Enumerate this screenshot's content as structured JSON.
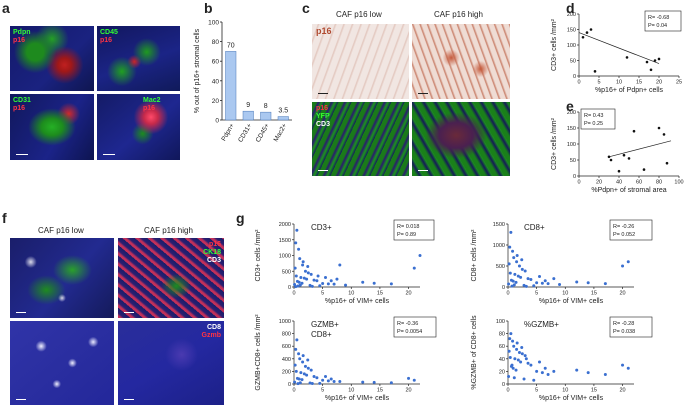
{
  "figure": {
    "panels": {
      "a": {
        "letter": "a",
        "tiles": [
          {
            "markers": [
              "Pdpn",
              "p16"
            ],
            "colors": [
              "#33ff33",
              "#ff3344"
            ]
          },
          {
            "markers": [
              "CD45",
              "p16"
            ],
            "colors": [
              "#33ff33",
              "#ff3344"
            ]
          },
          {
            "markers": [
              "CD31",
              "p16"
            ],
            "colors": [
              "#33ff33",
              "#ff3344"
            ]
          },
          {
            "markers": [
              "Mac2",
              "p16"
            ],
            "colors": [
              "#33ff33",
              "#ff3344"
            ]
          }
        ]
      },
      "b": {
        "letter": "b"
      },
      "c": {
        "letter": "c",
        "col_headers": [
          "CAF p16 low",
          "CAF p16 high"
        ],
        "ihc_label": "p16",
        "if_labels": [
          {
            "text": "p16",
            "color": "#ff3344"
          },
          {
            "text": "YFP",
            "color": "#33ff33"
          },
          {
            "text": "CD3",
            "color": "#ffffff"
          }
        ]
      },
      "d": {
        "letter": "d"
      },
      "e": {
        "letter": "e"
      },
      "f": {
        "letter": "f",
        "col_headers": [
          "CAF p16 low",
          "CAF p16 high"
        ],
        "top_labels": [
          {
            "text": "p16",
            "color": "#ff3344"
          },
          {
            "text": "CK18",
            "color": "#33ff33"
          },
          {
            "text": "CD3",
            "color": "#ffffff"
          }
        ],
        "bottom_labels": [
          {
            "text": "CD8",
            "color": "#ffffff"
          },
          {
            "text": "Gzmb",
            "color": "#ff3344"
          }
        ]
      },
      "g": {
        "letter": "g"
      }
    }
  },
  "chart_data": [
    {
      "id": "b",
      "type": "bar",
      "categories": [
        "Pdpn+",
        "CD31+",
        "CD45+",
        "Mac2+"
      ],
      "values": [
        70,
        9,
        8,
        3.5
      ],
      "value_labels": [
        "70",
        "9",
        "8",
        "3.5"
      ],
      "ylabel": "% out of p16+ stromal cells",
      "ylim": [
        0,
        100
      ],
      "yticks": [
        "0",
        "20",
        "40",
        "60",
        "80",
        "100"
      ],
      "bar_color": "#aac8f0"
    },
    {
      "id": "d",
      "type": "scatter",
      "xlabel": "%p16+ of Pdpn+ cells",
      "ylabel": "CD3+ cells /mm²",
      "xlim": [
        0,
        25
      ],
      "ylim": [
        0,
        200
      ],
      "xticks": [
        "0",
        "5",
        "10",
        "15",
        "20",
        "25"
      ],
      "yticks": [
        "0",
        "50",
        "100",
        "150",
        "200"
      ],
      "stats": [
        "R= -0.68",
        "P= 0.04"
      ],
      "points": [
        [
          1,
          125
        ],
        [
          2,
          140
        ],
        [
          3,
          150
        ],
        [
          4,
          15
        ],
        [
          12,
          60
        ],
        [
          17,
          45
        ],
        [
          18,
          20
        ],
        [
          19,
          50
        ],
        [
          20,
          55
        ]
      ],
      "trendline": [
        [
          0,
          140
        ],
        [
          20,
          40
        ]
      ]
    },
    {
      "id": "e",
      "type": "scatter",
      "xlabel": "%Pdpn+ of stromal area",
      "ylabel": "CD3+ cells /mm²",
      "xlim": [
        0,
        100
      ],
      "ylim": [
        0,
        200
      ],
      "xticks": [
        "0",
        "20",
        "40",
        "60",
        "80",
        "100"
      ],
      "yticks": [
        "0",
        "50",
        "100",
        "150",
        "200"
      ],
      "stats": [
        "R= 0.43",
        "P= 0.25"
      ],
      "points": [
        [
          30,
          60
        ],
        [
          32,
          50
        ],
        [
          40,
          15
        ],
        [
          45,
          65
        ],
        [
          50,
          55
        ],
        [
          55,
          140
        ],
        [
          65,
          20
        ],
        [
          80,
          150
        ],
        [
          85,
          130
        ],
        [
          88,
          40
        ]
      ],
      "trendline": [
        [
          30,
          60
        ],
        [
          92,
          110
        ]
      ]
    },
    {
      "id": "g1",
      "type": "scatter",
      "title": "CD3+",
      "xlabel": "%p16+ of VIM+ cells",
      "ylabel": "CD3+ cells /mm²",
      "xlim": [
        0,
        22
      ],
      "ylim": [
        0,
        2000
      ],
      "xticks": [
        "0",
        "5",
        "10",
        "15",
        "20"
      ],
      "yticks": [
        "0",
        "500",
        "1000",
        "1500",
        "2000"
      ],
      "stats": [
        "R= 0.018",
        "P= 0.89"
      ],
      "points": [
        [
          0.5,
          1800
        ],
        [
          0.3,
          1400
        ],
        [
          0.8,
          1200
        ],
        [
          1,
          900
        ],
        [
          1.5,
          700
        ],
        [
          0.2,
          600
        ],
        [
          2,
          500
        ],
        [
          2.5,
          450
        ],
        [
          3,
          400
        ],
        [
          0.4,
          350
        ],
        [
          1.2,
          300
        ],
        [
          1.8,
          280
        ],
        [
          2.2,
          250
        ],
        [
          3.5,
          220
        ],
        [
          4,
          200
        ],
        [
          0.6,
          180
        ],
        [
          0.9,
          150
        ],
        [
          1.4,
          120
        ],
        [
          5,
          110
        ],
        [
          6,
          100
        ],
        [
          7,
          90
        ],
        [
          0.1,
          80
        ],
        [
          1.1,
          60
        ],
        [
          2.8,
          50
        ],
        [
          4.5,
          40
        ],
        [
          0.7,
          30
        ],
        [
          3.2,
          20
        ],
        [
          5.5,
          300
        ],
        [
          6.5,
          200
        ],
        [
          8,
          700
        ],
        [
          12,
          150
        ],
        [
          14,
          120
        ],
        [
          17,
          100
        ],
        [
          21,
          600
        ],
        [
          22,
          1000
        ],
        [
          1.6,
          800
        ],
        [
          2.4,
          650
        ],
        [
          0.3,
          10
        ],
        [
          4.2,
          350
        ],
        [
          7.5,
          250
        ],
        [
          9,
          60
        ]
      ]
    },
    {
      "id": "g2",
      "type": "scatter",
      "title": "CD8+",
      "xlabel": "%p16+ of VIM+ cells",
      "ylabel": "CD8+ cells /mm²",
      "xlim": [
        0,
        22
      ],
      "ylim": [
        0,
        1500
      ],
      "xticks": [
        "0",
        "5",
        "10",
        "15",
        "20"
      ],
      "yticks": [
        "0",
        "500",
        "1000",
        "1500"
      ],
      "stats": [
        "R= -0.26",
        "P= 0.052"
      ],
      "points": [
        [
          0.5,
          1300
        ],
        [
          0.3,
          950
        ],
        [
          0.8,
          850
        ],
        [
          1,
          700
        ],
        [
          1.5,
          600
        ],
        [
          0.2,
          550
        ],
        [
          2,
          500
        ],
        [
          2.5,
          420
        ],
        [
          3,
          380
        ],
        [
          0.4,
          330
        ],
        [
          1.2,
          300
        ],
        [
          1.8,
          260
        ],
        [
          2.2,
          230
        ],
        [
          3.5,
          200
        ],
        [
          4,
          180
        ],
        [
          0.6,
          160
        ],
        [
          0.9,
          140
        ],
        [
          1.4,
          110
        ],
        [
          5,
          100
        ],
        [
          6,
          90
        ],
        [
          7,
          80
        ],
        [
          0.1,
          70
        ],
        [
          1.1,
          50
        ],
        [
          2.8,
          40
        ],
        [
          4.5,
          30
        ],
        [
          0.7,
          20
        ],
        [
          3.2,
          15
        ],
        [
          5.5,
          250
        ],
        [
          6.5,
          150
        ],
        [
          8,
          200
        ],
        [
          12,
          120
        ],
        [
          14,
          100
        ],
        [
          17,
          80
        ],
        [
          20,
          500
        ],
        [
          21,
          600
        ],
        [
          1.6,
          750
        ],
        [
          2.4,
          650
        ],
        [
          9,
          60
        ]
      ]
    },
    {
      "id": "g3",
      "type": "scatter",
      "title": "GZMB+\nCD8+",
      "xlabel": "%p16+ of VIM+ cells",
      "ylabel": "GZMB+CD8+ cells /mm²",
      "xlim": [
        0,
        22
      ],
      "ylim": [
        0,
        1000
      ],
      "xticks": [
        "0",
        "5",
        "10",
        "15",
        "20"
      ],
      "yticks": [
        "0",
        "200",
        "400",
        "600",
        "800",
        "1000"
      ],
      "stats": [
        "R= -0.36",
        "P= 0.0054"
      ],
      "points": [
        [
          0.5,
          700
        ],
        [
          0.3,
          550
        ],
        [
          0.8,
          480
        ],
        [
          1,
          400
        ],
        [
          1.5,
          350
        ],
        [
          0.2,
          300
        ],
        [
          2,
          280
        ],
        [
          2.5,
          250
        ],
        [
          3,
          220
        ],
        [
          0.4,
          200
        ],
        [
          1.2,
          180
        ],
        [
          1.8,
          160
        ],
        [
          2.2,
          140
        ],
        [
          3.5,
          120
        ],
        [
          4,
          100
        ],
        [
          0.6,
          90
        ],
        [
          0.9,
          80
        ],
        [
          1.4,
          70
        ],
        [
          5,
          60
        ],
        [
          6,
          50
        ],
        [
          7,
          40
        ],
        [
          0.1,
          30
        ],
        [
          1.1,
          20
        ],
        [
          2.8,
          15
        ],
        [
          4.5,
          10
        ],
        [
          0.7,
          5
        ],
        [
          3.2,
          8
        ],
        [
          5.5,
          120
        ],
        [
          6.5,
          80
        ],
        [
          8,
          40
        ],
        [
          12,
          30
        ],
        [
          14,
          25
        ],
        [
          17,
          20
        ],
        [
          20,
          90
        ],
        [
          21,
          60
        ],
        [
          1.6,
          450
        ],
        [
          2.4,
          380
        ]
      ]
    },
    {
      "id": "g4",
      "type": "scatter",
      "title": "%GZMB+",
      "xlabel": "%p16+ of VIM+ cells",
      "ylabel": "%GZMB+ of CD8+ cells",
      "xlim": [
        0,
        22
      ],
      "ylim": [
        0,
        100
      ],
      "xticks": [
        "0",
        "5",
        "10",
        "15",
        "20"
      ],
      "yticks": [
        "0",
        "20",
        "40",
        "60",
        "80",
        "100"
      ],
      "stats": [
        "R= -0.28",
        "P= 0.038"
      ],
      "points": [
        [
          0.5,
          80
        ],
        [
          0.3,
          72
        ],
        [
          0.8,
          68
        ],
        [
          1,
          60
        ],
        [
          1.5,
          55
        ],
        [
          0.2,
          52
        ],
        [
          2,
          50
        ],
        [
          2.5,
          48
        ],
        [
          3,
          45
        ],
        [
          0.4,
          42
        ],
        [
          1.2,
          40
        ],
        [
          1.8,
          38
        ],
        [
          2.2,
          35
        ],
        [
          3.5,
          33
        ],
        [
          4,
          30
        ],
        [
          0.6,
          28
        ],
        [
          0.9,
          25
        ],
        [
          1.4,
          22
        ],
        [
          5,
          20
        ],
        [
          6,
          18
        ],
        [
          7,
          15
        ],
        [
          0.1,
          12
        ],
        [
          1.1,
          10
        ],
        [
          2.8,
          8
        ],
        [
          4.5,
          6
        ],
        [
          0.7,
          30
        ],
        [
          3.2,
          40
        ],
        [
          5.5,
          35
        ],
        [
          6.5,
          25
        ],
        [
          8,
          20
        ],
        [
          12,
          22
        ],
        [
          14,
          18
        ],
        [
          17,
          15
        ],
        [
          20,
          30
        ],
        [
          21,
          25
        ],
        [
          1.6,
          65
        ],
        [
          2.4,
          58
        ]
      ]
    }
  ]
}
